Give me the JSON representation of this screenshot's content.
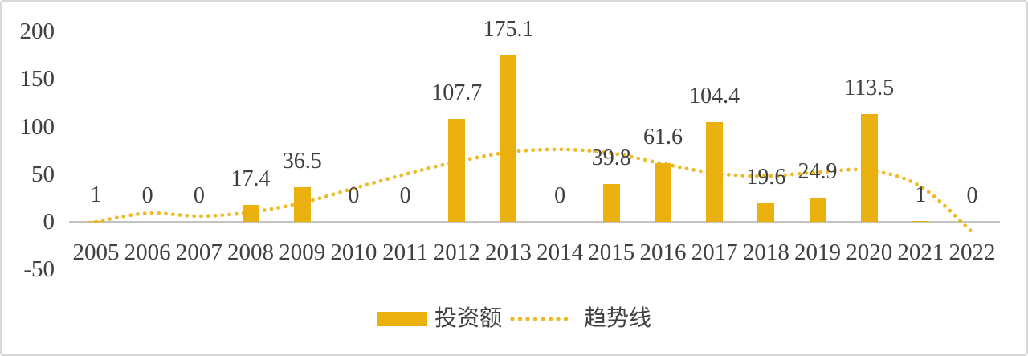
{
  "chart_data": {
    "type": "bar",
    "title": "",
    "categories": [
      "2005",
      "2006",
      "2007",
      "2008",
      "2009",
      "2010",
      "2011",
      "2012",
      "2013",
      "2014",
      "2015",
      "2016",
      "2017",
      "2018",
      "2019",
      "2020",
      "2021",
      "2022"
    ],
    "series": [
      {
        "name": "投资额",
        "type": "bar",
        "values": [
          1,
          0,
          0,
          17.4,
          36.5,
          0,
          0,
          107.7,
          175.1,
          0,
          39.8,
          61.6,
          104.4,
          19.6,
          24.9,
          113.5,
          1,
          0
        ],
        "data_labels": [
          "1",
          "0",
          "0",
          "17.4",
          "36.5",
          "0",
          "0",
          "107.7",
          "175.1",
          "0",
          "39.8",
          "61.6",
          "104.4",
          "19.6",
          "24.9",
          "113.5",
          "1",
          "0"
        ]
      },
      {
        "name": "趋势线",
        "type": "dotted_line",
        "values": [
          0,
          9,
          6,
          10,
          20,
          35,
          50,
          63,
          73,
          76,
          72,
          61,
          51,
          48,
          52,
          54,
          37,
          -11
        ]
      }
    ],
    "y_axis": {
      "ticks": [
        200,
        150,
        100,
        50,
        0,
        -50
      ],
      "min": -50,
      "max": 200
    },
    "x_axis": {
      "labels": "years below axis"
    },
    "grid": false,
    "legend_position": "bottom",
    "colors": {
      "bar": "#EAB10E",
      "trend": "#EEBB28",
      "text": "#404040",
      "axis_line": "#C3C3C3",
      "border": "#D8D8D8",
      "background": "#FFFFFF"
    }
  },
  "legend": {
    "bar_label": "投资额",
    "trend_label": "趋势线"
  }
}
